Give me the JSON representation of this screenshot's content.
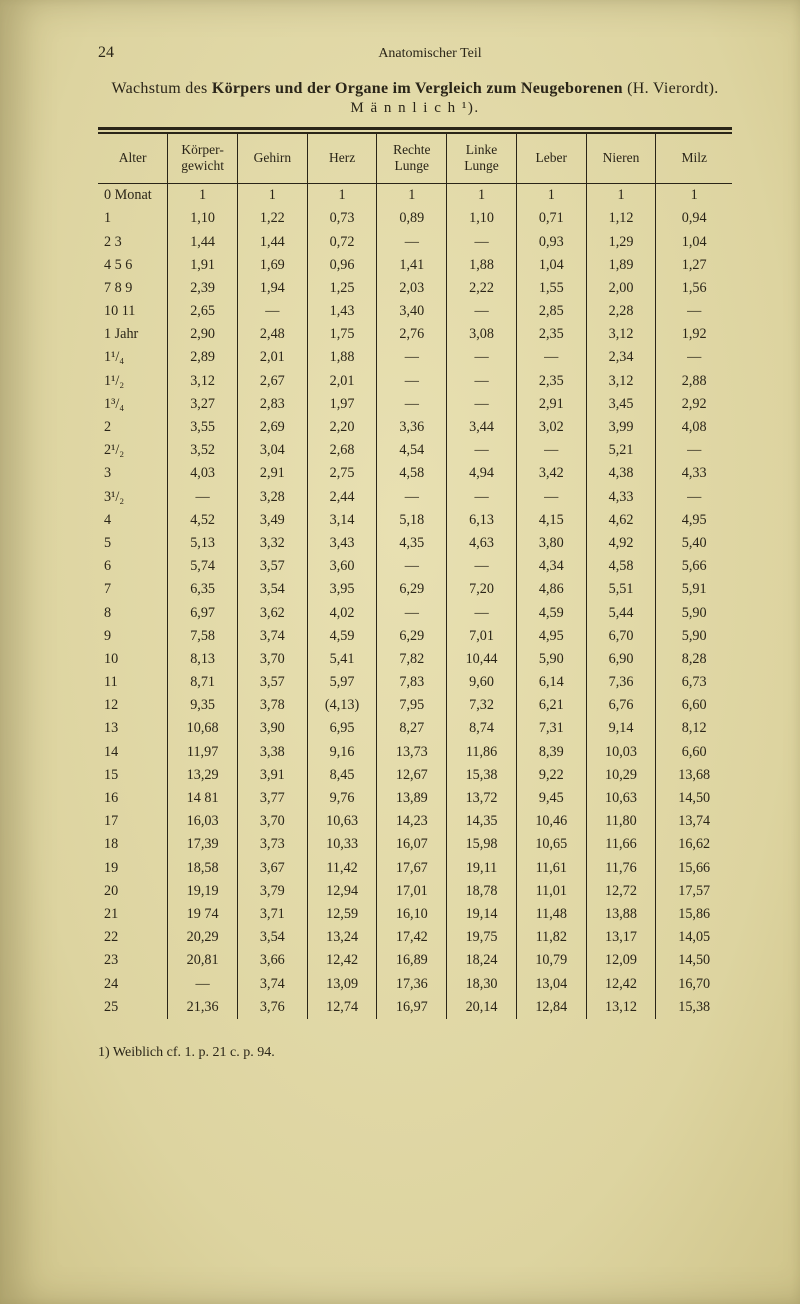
{
  "page_number": "24",
  "running_title": "Anatomischer Teil",
  "title_plain": "Wachstum des ",
  "title_bold": "Körpers und der Organe im Vergleich zum Neugeborenen ",
  "title_tail": "(H. Vierordt).",
  "subtitle": "M ä n n l i c h ¹).",
  "columns": [
    "Alter",
    "Körper-\ngewicht",
    "Gehirn",
    "Herz",
    "Rechte\nLunge",
    "Linke\nLunge",
    "Leber",
    "Nieren",
    "Milz"
  ],
  "rows": [
    [
      "0 Monat",
      "1",
      "1",
      "1",
      "1",
      "1",
      "1",
      "1",
      "1"
    ],
    [
      "1",
      "1,10",
      "1,22",
      "0,73",
      "0,89",
      "1,10",
      "0,71",
      "1,12",
      "0,94"
    ],
    [
      "2 3",
      "1,44",
      "1,44",
      "0,72",
      "—",
      "—",
      "0,93",
      "1,29",
      "1,04"
    ],
    [
      "4 5 6",
      "1,91",
      "1,69",
      "0,96",
      "1,41",
      "1,88",
      "1,04",
      "1,89",
      "1,27"
    ],
    [
      "7 8 9",
      "2,39",
      "1,94",
      "1,25",
      "2,03",
      "2,22",
      "1,55",
      "2,00",
      "1,56"
    ],
    [
      "10 11",
      "2,65",
      "—",
      "1,43",
      "3,40",
      "—",
      "2,85",
      "2,28",
      "—"
    ],
    [
      "1 Jahr",
      "2,90",
      "2,48",
      "1,75",
      "2,76",
      "3,08",
      "2,35",
      "3,12",
      "1,92"
    ],
    [
      "1¹/₄",
      "2,89",
      "2,01",
      "1,88",
      "—",
      "—",
      "—",
      "2,34",
      "—"
    ],
    [
      "1¹/₂",
      "3,12",
      "2,67",
      "2,01",
      "—",
      "—",
      "2,35",
      "3,12",
      "2,88"
    ],
    [
      "1³/₄",
      "3,27",
      "2,83",
      "1,97",
      "—",
      "—",
      "2,91",
      "3,45",
      "2,92"
    ],
    [
      "2",
      "3,55",
      "2,69",
      "2,20",
      "3,36",
      "3,44",
      "3,02",
      "3,99",
      "4,08"
    ],
    [
      "2¹/₂",
      "3,52",
      "3,04",
      "2,68",
      "4,54",
      "—",
      "—",
      "5,21",
      "—"
    ],
    [
      "3",
      "4,03",
      "2,91",
      "2,75",
      "4,58",
      "4,94",
      "3,42",
      "4,38",
      "4,33"
    ],
    [
      "3¹/₂",
      "—",
      "3,28",
      "2,44",
      "—",
      "—",
      "—",
      "4,33",
      "—"
    ],
    [
      "4",
      "4,52",
      "3,49",
      "3,14",
      "5,18",
      "6,13",
      "4,15",
      "4,62",
      "4,95"
    ],
    [
      "5",
      "5,13",
      "3,32",
      "3,43",
      "4,35",
      "4,63",
      "3,80",
      "4,92",
      "5,40"
    ],
    [
      "6",
      "5,74",
      "3,57",
      "3,60",
      "—",
      "—",
      "4,34",
      "4,58",
      "5,66"
    ],
    [
      "7",
      "6,35",
      "3,54",
      "3,95",
      "6,29",
      "7,20",
      "4,86",
      "5,51",
      "5,91"
    ],
    [
      "8",
      "6,97",
      "3,62",
      "4,02",
      "—",
      "—",
      "4,59",
      "5,44",
      "5,90"
    ],
    [
      "9",
      "7,58",
      "3,74",
      "4,59",
      "6,29",
      "7,01",
      "4,95",
      "6,70",
      "5,90"
    ],
    [
      "10",
      "8,13",
      "3,70",
      "5,41",
      "7,82",
      "10,44",
      "5,90",
      "6,90",
      "8,28"
    ],
    [
      "11",
      "8,71",
      "3,57",
      "5,97",
      "7,83",
      "9,60",
      "6,14",
      "7,36",
      "6,73"
    ],
    [
      "12",
      "9,35",
      "3,78",
      "(4,13)",
      "7,95",
      "7,32",
      "6,21",
      "6,76",
      "6,60"
    ],
    [
      "13",
      "10,68",
      "3,90",
      "6,95",
      "8,27",
      "8,74",
      "7,31",
      "9,14",
      "8,12"
    ],
    [
      "14",
      "11,97",
      "3,38",
      "9,16",
      "13,73",
      "11,86",
      "8,39",
      "10,03",
      "6,60"
    ],
    [
      "15",
      "13,29",
      "3,91",
      "8,45",
      "12,67",
      "15,38",
      "9,22",
      "10,29",
      "13,68"
    ],
    [
      "16",
      "14 81",
      "3,77",
      "9,76",
      "13,89",
      "13,72",
      "9,45",
      "10,63",
      "14,50"
    ],
    [
      "17",
      "16,03",
      "3,70",
      "10,63",
      "14,23",
      "14,35",
      "10,46",
      "11,80",
      "13,74"
    ],
    [
      "18",
      "17,39",
      "3,73",
      "10,33",
      "16,07",
      "15,98",
      "10,65",
      "11,66",
      "16,62"
    ],
    [
      "19",
      "18,58",
      "3,67",
      "11,42",
      "17,67",
      "19,11",
      "11,61",
      "11,76",
      "15,66"
    ],
    [
      "20",
      "19,19",
      "3,79",
      "12,94",
      "17,01",
      "18,78",
      "11,01",
      "12,72",
      "17,57"
    ],
    [
      "21",
      "19 74",
      "3,71",
      "12,59",
      "16,10",
      "19,14",
      "11,48",
      "13,88",
      "15,86"
    ],
    [
      "22",
      "20,29",
      "3,54",
      "13,24",
      "17,42",
      "19,75",
      "11,82",
      "13,17",
      "14,05"
    ],
    [
      "23",
      "20,81",
      "3,66",
      "12,42",
      "16,89",
      "18,24",
      "10,79",
      "12,09",
      "14,50"
    ],
    [
      "24",
      "—",
      "3,74",
      "13,09",
      "17,36",
      "18,30",
      "13,04",
      "12,42",
      "16,70"
    ],
    [
      "25",
      "21,36",
      "3,76",
      "12,74",
      "16,97",
      "20,14",
      "12,84",
      "13,12",
      "15,38"
    ]
  ],
  "footnote": "1) Weiblich cf. 1. p. 21 c. p. 94.",
  "side_mark": ""
}
